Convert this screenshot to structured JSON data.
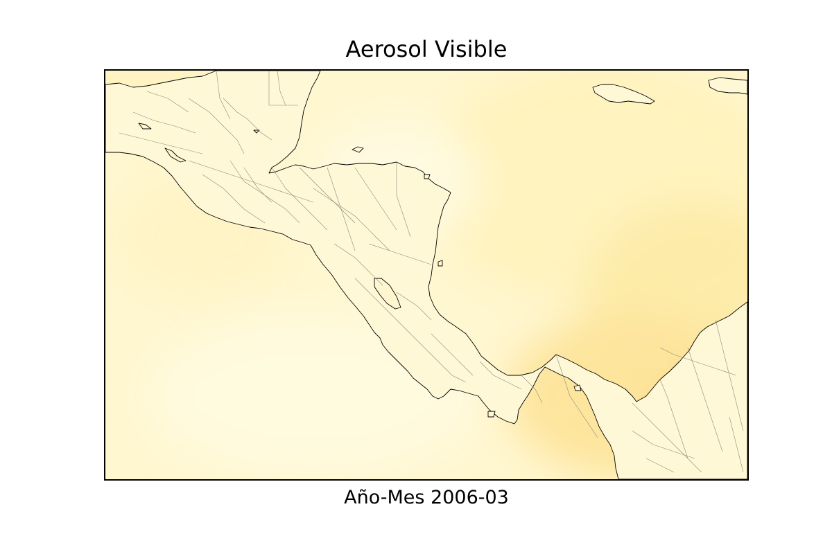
{
  "map": {
    "title": "Aerosol Visible",
    "caption": "Año-Mes 2006-03",
    "colors": {
      "background": "#fff8d2",
      "light": "#fffbe0",
      "medium": "#fff1b8",
      "high": "#fde59a",
      "peak": "#fbd982",
      "coastline": "#000000",
      "borders": "#8a8a7a"
    }
  }
}
